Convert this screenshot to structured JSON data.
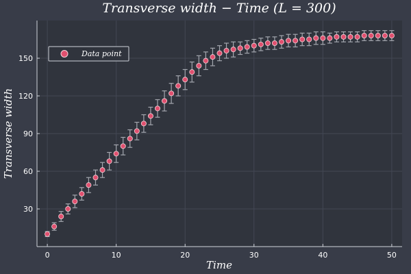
{
  "chart_data": {
    "type": "scatter",
    "title": "Transverse width − Time  (L = 300)",
    "xlabel": "Time",
    "ylabel": "Transverse width",
    "xlim": [
      -1.5,
      51.5
    ],
    "ylim": [
      0,
      180
    ],
    "xticks": [
      0,
      10,
      20,
      30,
      40,
      50
    ],
    "yticks": [
      30,
      60,
      90,
      120,
      150
    ],
    "grid": true,
    "legend_position": "top-left",
    "colors": {
      "background": "#383c48",
      "plot_area": "#30343d",
      "grid": "#434754",
      "axis": "#d0d3da",
      "marker": "#e0506f",
      "marker_edge": "#f2d6dc",
      "errorbar": "#a4a7af"
    },
    "series": [
      {
        "name": "Data point",
        "x": [
          0,
          1,
          2,
          3,
          4,
          5,
          6,
          7,
          8,
          9,
          10,
          11,
          12,
          13,
          14,
          15,
          16,
          17,
          18,
          19,
          20,
          21,
          22,
          23,
          24,
          25,
          26,
          27,
          28,
          29,
          30,
          31,
          32,
          33,
          34,
          35,
          36,
          37,
          38,
          39,
          40,
          41,
          42,
          43,
          44,
          45,
          46,
          47,
          48,
          49,
          50
        ],
        "y": [
          10,
          16,
          24,
          30,
          36,
          42,
          49,
          55,
          61,
          68,
          74,
          80,
          86,
          92,
          98,
          104,
          110,
          116,
          122,
          128,
          133,
          139,
          144,
          148,
          151,
          154,
          156,
          157,
          158,
          159,
          160,
          161,
          162,
          162,
          163,
          164,
          164,
          165,
          165,
          166,
          166,
          166,
          167,
          167,
          167,
          167,
          168,
          168,
          168,
          168,
          168
        ],
        "err": [
          2,
          3,
          4,
          4,
          5,
          5,
          6,
          6,
          6,
          7,
          7,
          7,
          7,
          7,
          7,
          7,
          7,
          8,
          8,
          8,
          8,
          8,
          8,
          7,
          7,
          6,
          6,
          6,
          5,
          5,
          5,
          5,
          5,
          5,
          5,
          5,
          5,
          5,
          5,
          5,
          5,
          4,
          4,
          4,
          4,
          4,
          4,
          4,
          4,
          4,
          4
        ]
      }
    ]
  }
}
